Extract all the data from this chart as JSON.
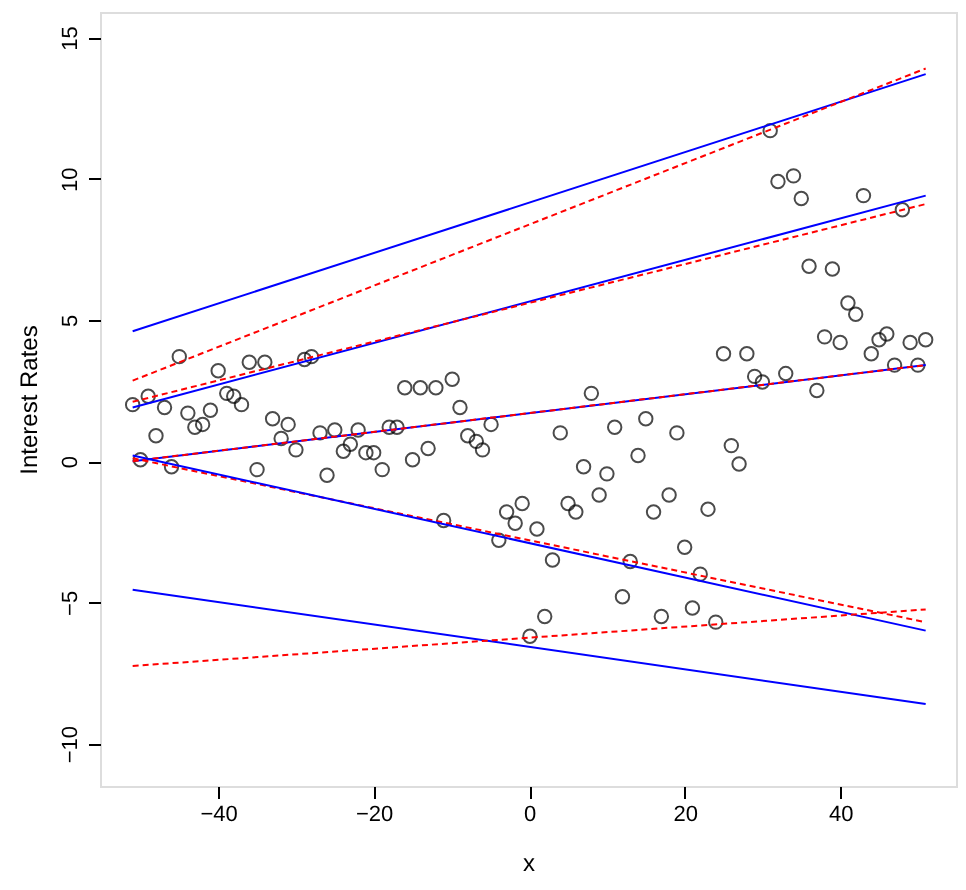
{
  "chart_data": {
    "type": "scatter",
    "xlabel": "x",
    "ylabel": "Interest Rates",
    "xlim": [
      -55.2,
      54.9
    ],
    "ylim": [
      -11.5,
      15.9
    ],
    "xticks": [
      {
        "value": -40,
        "label": "−40"
      },
      {
        "value": -20,
        "label": "−20"
      },
      0,
      20,
      40
    ],
    "yticks": [
      {
        "value": -10,
        "label": "−10"
      },
      {
        "value": -5,
        "label": "−5"
      },
      0,
      5,
      10,
      15
    ],
    "grid": false,
    "series": [
      {
        "color": "#000000",
        "marker": "circle",
        "x": [
          -51,
          -49,
          -46.9,
          -45,
          -48,
          -43.9,
          -43,
          -42,
          -41,
          -40,
          -38.9,
          -38,
          -37,
          -36,
          -34,
          -28.9,
          -28,
          -33,
          -31,
          -16,
          -14,
          -12,
          -9.9,
          -8.9,
          -4.9,
          -7.9,
          -6.8,
          -50,
          -46,
          -35,
          -31.9,
          -30,
          -26.9,
          -26,
          -25,
          -23.9,
          -23,
          -22,
          -21,
          -20,
          -18.9,
          -18,
          -17,
          -15,
          -13,
          -6,
          -11,
          -3.9,
          -2.9,
          -1.8,
          -0.9,
          0.1,
          31,
          32,
          34,
          35,
          43,
          48,
          36,
          39,
          41,
          42,
          38,
          40,
          46,
          45,
          44,
          49,
          51,
          47,
          50,
          25,
          28,
          29,
          30,
          33,
          37,
          8,
          4,
          11,
          15,
          19,
          26,
          27,
          14,
          7,
          10,
          9,
          5,
          6,
          1,
          3,
          18,
          16,
          23,
          20,
          13,
          22,
          12,
          2,
          17,
          21,
          24
        ],
        "values": [
          2.0,
          2.3,
          1.9,
          3.7,
          0.9,
          1.7,
          1.2,
          1.3,
          1.8,
          3.2,
          2.4,
          2.3,
          2.0,
          3.5,
          3.5,
          3.6,
          3.7,
          1.5,
          1.3,
          2.6,
          2.6,
          2.6,
          2.9,
          1.9,
          1.3,
          0.9,
          0.7,
          0.05,
          -0.2,
          -0.3,
          0.8,
          0.4,
          1.0,
          -0.5,
          1.1,
          0.35,
          0.6,
          1.1,
          0.3,
          0.3,
          -0.3,
          1.2,
          1.2,
          0.05,
          0.45,
          0.4,
          -2.1,
          -2.8,
          -1.8,
          -2.2,
          -1.5,
          -6.2,
          11.7,
          9.9,
          10.1,
          9.3,
          9.4,
          8.9,
          6.9,
          6.8,
          5.6,
          5.2,
          4.4,
          4.2,
          4.5,
          4.3,
          3.8,
          4.2,
          4.3,
          3.4,
          3.4,
          3.8,
          3.8,
          3.0,
          2.8,
          3.1,
          2.5,
          2.4,
          1.0,
          1.2,
          1.5,
          1.0,
          0.55,
          -0.1,
          0.2,
          -0.2,
          -0.45,
          -1.2,
          -1.5,
          -1.8,
          -2.4,
          -3.5,
          -1.2,
          -1.8,
          -1.7,
          -3.05,
          -3.55,
          -4.0,
          -4.8,
          -5.5,
          -5.5,
          -5.2,
          -5.7
        ]
      },
      {
        "type": "line",
        "color": "#0000ff",
        "line_style": "solid",
        "x": [
          -51,
          51
        ],
        "values": [
          4.6,
          13.7
        ]
      },
      {
        "type": "line",
        "color": "#ff0000",
        "line_style": "dashed",
        "x": [
          -51,
          51
        ],
        "values": [
          2.85,
          13.9
        ]
      },
      {
        "type": "line",
        "color": "#0000ff",
        "line_style": "solid",
        "x": [
          -51,
          51
        ],
        "values": [
          1.9,
          9.4
        ]
      },
      {
        "type": "line",
        "color": "#ff0000",
        "line_style": "dashed",
        "x": [
          -51,
          51
        ],
        "values": [
          2.1,
          9.1
        ]
      },
      {
        "type": "line",
        "color": "#0000ff",
        "line_style": "solid",
        "x": [
          -51,
          51
        ],
        "values": [
          0.0,
          3.4
        ]
      },
      {
        "type": "line",
        "color": "#ff0000",
        "line_style": "dashed",
        "x": [
          -51,
          51
        ],
        "values": [
          0.0,
          3.4
        ]
      },
      {
        "type": "line",
        "color": "#ff0000",
        "line_style": "dashed",
        "x": [
          -51,
          51
        ],
        "values": [
          0.1,
          -5.7
        ]
      },
      {
        "type": "line",
        "color": "#0000ff",
        "line_style": "solid",
        "x": [
          -51,
          51
        ],
        "values": [
          0.2,
          -6.0
        ]
      },
      {
        "type": "line",
        "color": "#0000ff",
        "line_style": "solid",
        "x": [
          -51,
          51
        ],
        "values": [
          -4.55,
          -8.6
        ]
      },
      {
        "type": "line",
        "color": "#ff0000",
        "line_style": "dashed",
        "x": [
          -51,
          51
        ],
        "values": [
          -7.25,
          -5.25
        ]
      }
    ]
  }
}
